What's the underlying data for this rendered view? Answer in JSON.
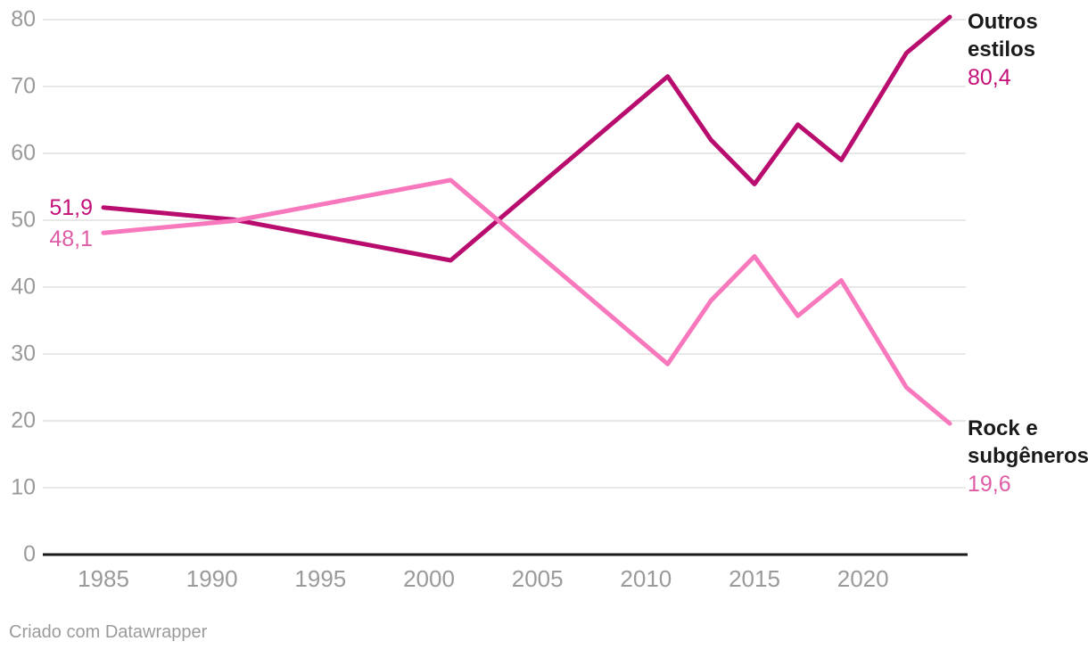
{
  "chart_data": {
    "type": "line",
    "x": [
      1985,
      1991,
      2001,
      2011,
      2013,
      2015,
      2017,
      2019,
      2022,
      2024
    ],
    "series": [
      {
        "name": "Outros estilos",
        "values": [
          51.9,
          50.1,
          44.0,
          71.5,
          62.0,
          55.4,
          64.3,
          59.0,
          75.0,
          80.4
        ],
        "start_label": "51,9",
        "end_label": "80,4",
        "line_color": "#b80d6e",
        "label_color": "#c4117a"
      },
      {
        "name": "Rock e subgêneros",
        "values": [
          48.1,
          49.9,
          56.0,
          28.5,
          38.0,
          44.6,
          35.7,
          41.0,
          25.0,
          19.6
        ],
        "start_label": "48,1",
        "end_label": "19,6",
        "line_color": "#f878bd",
        "label_color": "#de5ca5"
      }
    ],
    "xticks": [
      "1985",
      "1990",
      "1995",
      "2000",
      "2005",
      "2010",
      "2015",
      "2020"
    ],
    "yticks": [
      "0",
      "10",
      "20",
      "30",
      "40",
      "50",
      "60",
      "70",
      "80"
    ],
    "ylim": [
      0,
      80
    ],
    "grid": true,
    "legend_position": "right-edge-labels",
    "grid_color": "#e8e8e8",
    "axis_color": "#1a1a1a",
    "tick_color": "#9a9a9a"
  },
  "footer": {
    "credit": "Criado com Datawrapper"
  }
}
